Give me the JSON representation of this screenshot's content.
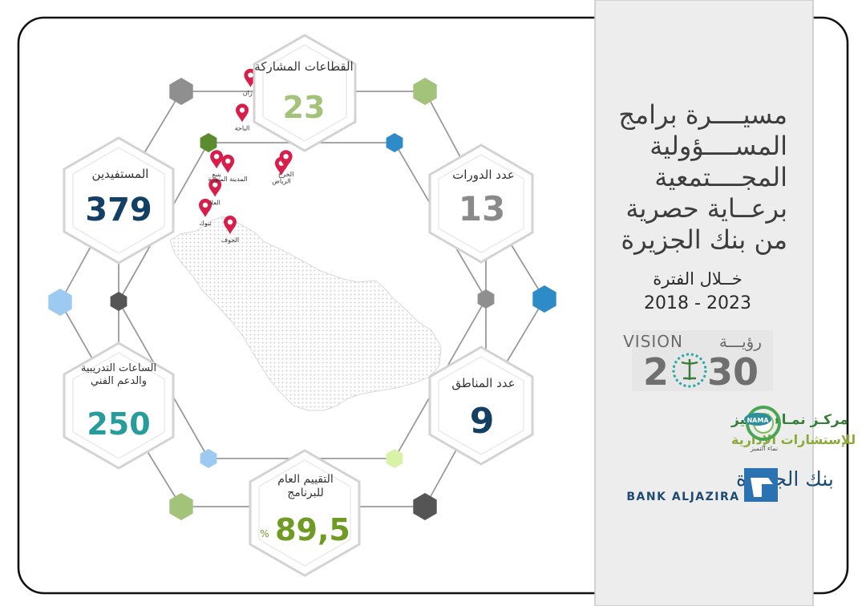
{
  "colors": {
    "green": "#a3c27a",
    "dark_green": "#5c8a2e",
    "navy": "#123f63",
    "grey_text": "#8a8a8a",
    "teal": "#269c9b",
    "olive": "#6f9a23",
    "blue": "#2d8cc7",
    "light_blue": "#9ccaf0",
    "lime": "#d8f3a8",
    "dark_grey": "#555555",
    "mid_grey": "#8f8f8f"
  },
  "stats": {
    "sectors": {
      "label": "القطاعات المشاركة",
      "value": "23"
    },
    "courses": {
      "label": "عدد الدورات",
      "value": "13"
    },
    "beneficiaries": {
      "label": "المستفيدين",
      "value": "379"
    },
    "regions": {
      "label": "عدد المناطق",
      "value": "9"
    },
    "hours": {
      "label": "الساعات التدريبية والدعم الفني",
      "value": "250"
    },
    "evaluation": {
      "label": "التقييم العام للبرنامج",
      "value": "89,5",
      "unit": "%"
    }
  },
  "map": {
    "cities": [
      {
        "name": "الجوف",
        "lon": 39.9,
        "lat": 29.9
      },
      {
        "name": "تبوك",
        "lon": 36.6,
        "lat": 28.4
      },
      {
        "name": "العلا",
        "lon": 37.9,
        "lat": 26.6
      },
      {
        "name": "ينبع",
        "lon": 38.1,
        "lat": 24.1
      },
      {
        "name": "المدينة المنورة",
        "lon": 39.6,
        "lat": 24.5
      },
      {
        "name": "الرياض",
        "lon": 46.7,
        "lat": 24.7
      },
      {
        "name": "الخرج",
        "lon": 47.3,
        "lat": 24.1
      },
      {
        "name": "الباحة",
        "lon": 41.5,
        "lat": 20.0
      },
      {
        "name": "جازان",
        "lon": 42.6,
        "lat": 16.9
      }
    ]
  },
  "sidebar": {
    "title": "مسيــــرة برامج\nالمســــؤولية\nالمجــــتمعية\nبرعــاية حصرية\nمن بنك الجزيرة",
    "period_label": "خــلال الفترة",
    "period_range": "2018 - 2023",
    "vision_word": "VISION",
    "vision_arabic": "رؤيـــة",
    "vision_year_a": "2",
    "vision_year_b": "30",
    "nama_line1": "مركـز نمـاء التميز",
    "nama_line2": "للإستشارات الإدارية",
    "nama_badge": "NAMA",
    "nama_caption": "نماء التميز",
    "bank_arabic": "بنك الجزيرة",
    "bank_english": "BANK ALJAZIRA"
  }
}
